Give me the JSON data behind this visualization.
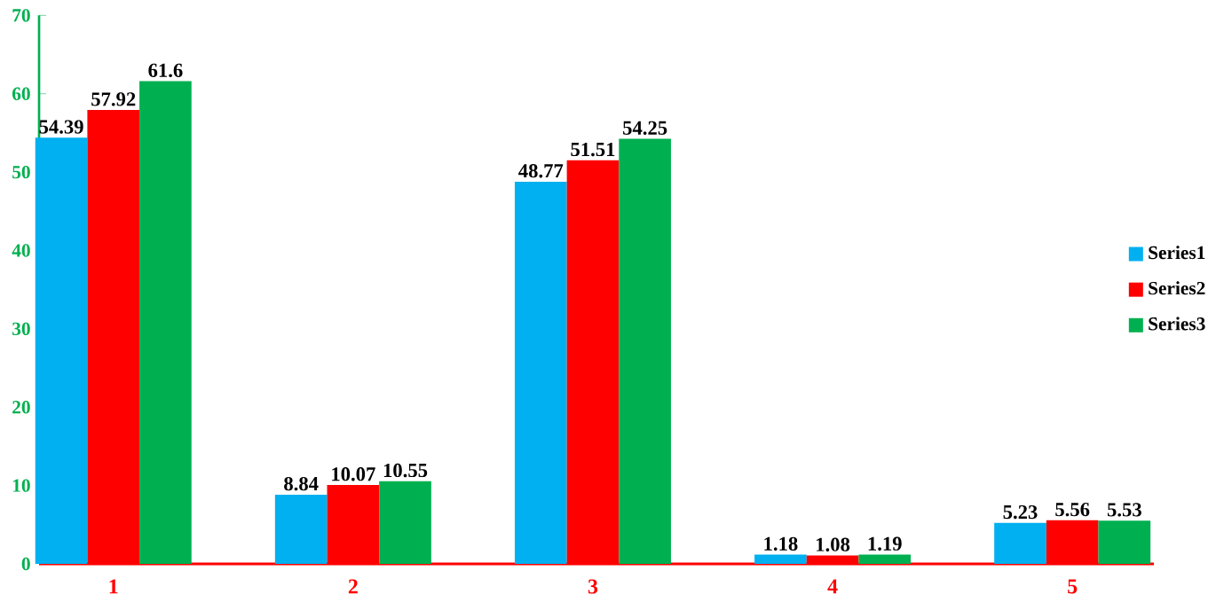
{
  "chart_data": {
    "type": "bar",
    "categories": [
      "1",
      "2",
      "3",
      "4",
      "5"
    ],
    "series": [
      {
        "name": "Series1",
        "color": "#00b0f0",
        "values": [
          54.39,
          8.84,
          48.77,
          1.18,
          5.23
        ]
      },
      {
        "name": "Series2",
        "color": "#ff0000",
        "values": [
          57.92,
          10.07,
          51.51,
          1.08,
          5.56
        ]
      },
      {
        "name": "Series3",
        "color": "#00b050",
        "values": [
          61.6,
          10.55,
          54.25,
          1.19,
          5.53
        ]
      }
    ],
    "ylim": [
      0,
      70
    ],
    "yticks": [
      0,
      10,
      20,
      30,
      40,
      50,
      60,
      70
    ],
    "data_labels": true,
    "legend": "right",
    "grid": false
  }
}
